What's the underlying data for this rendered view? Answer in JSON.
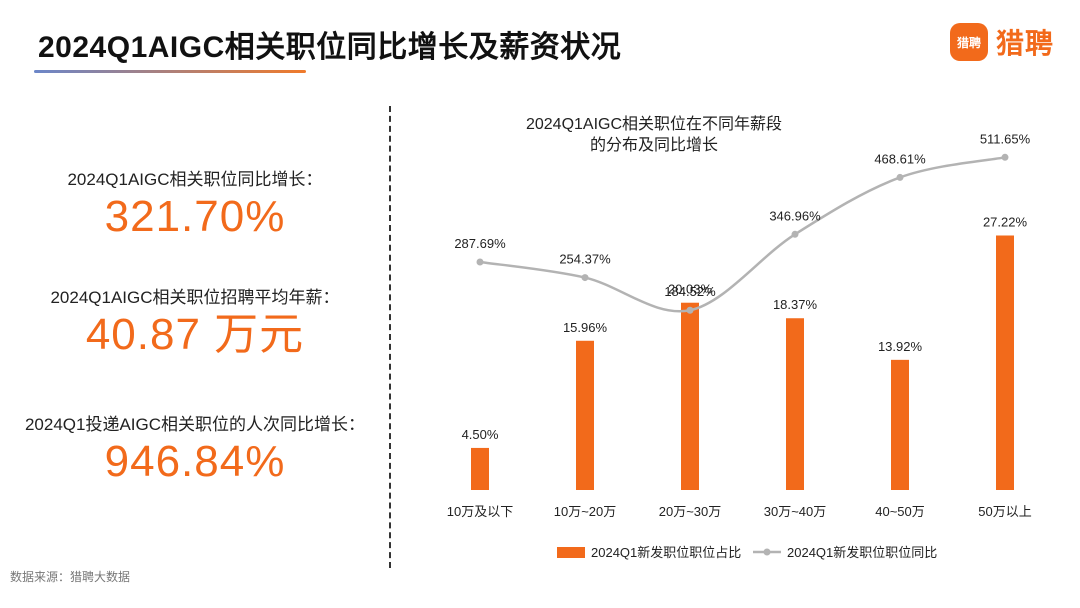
{
  "header": {
    "title": "2024Q1AIGC相关职位同比增长及薪资状况"
  },
  "logo": {
    "mark_text": "猎聘",
    "brand_text": "猎聘"
  },
  "stats": [
    {
      "label": "2024Q1AIGC相关职位同比增长：",
      "value": "321.70%"
    },
    {
      "label": "2024Q1AIGC相关职位招聘平均年薪：",
      "value": "40.87 万元"
    },
    {
      "label": "2024Q1投递AIGC相关职位的人次同比增长：",
      "value": "946.84%"
    }
  ],
  "footer": {
    "source": "数据来源：猎聘大数据"
  },
  "colors": {
    "accent": "#f26a1b",
    "line": "#b3b3b3"
  },
  "chart_data": {
    "type": "bar",
    "title": "2024Q1AIGC相关职位在不同年薪段\n的分布及同比增长",
    "categories": [
      "10万及以下",
      "10万~20万",
      "20万~30万",
      "30万~40万",
      "40~50万",
      "50万以上"
    ],
    "series": [
      {
        "name": "2024Q1新发职位职位占比",
        "kind": "bar",
        "values": [
          4.5,
          15.96,
          20.03,
          18.37,
          13.92,
          27.22
        ],
        "labels": [
          "4.50%",
          "15.96%",
          "20.03%",
          "18.37%",
          "13.92%",
          "27.22%"
        ]
      },
      {
        "name": "2024Q1新发职位职位同比",
        "kind": "line",
        "values": [
          287.69,
          254.37,
          184.52,
          346.96,
          468.61,
          511.65
        ],
        "labels": [
          "287.69%",
          "254.37%",
          "184.52%",
          "346.96%",
          "468.61%",
          "511.65%"
        ]
      }
    ],
    "bar_ylim": [
      0,
      40
    ],
    "line_ylim": [
      -200,
      600
    ],
    "legend_position": "bottom",
    "grid": false
  }
}
